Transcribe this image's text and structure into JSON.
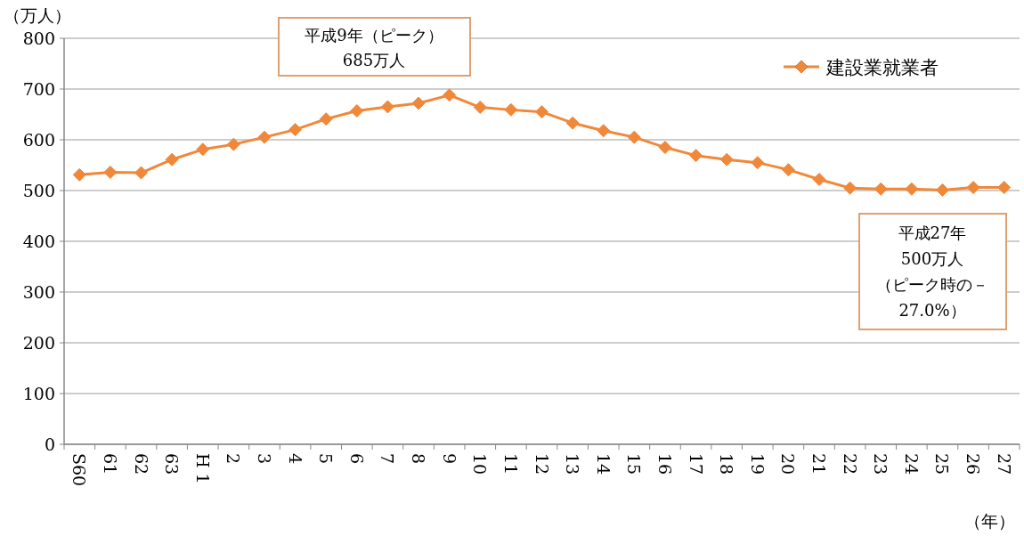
{
  "chart_data": {
    "type": "line",
    "categories": [
      "S60",
      "61",
      "62",
      "63",
      "H 1",
      "2",
      "3",
      "4",
      "5",
      "6",
      "7",
      "8",
      "9",
      "10",
      "11",
      "12",
      "13",
      "14",
      "15",
      "16",
      "17",
      "18",
      "19",
      "20",
      "21",
      "22",
      "23",
      "24",
      "25",
      "26",
      "27"
    ],
    "series": [
      {
        "name": "建設業就業者",
        "color": "#f0883a",
        "values": [
          531,
          536,
          535,
          561,
          581,
          591,
          605,
          620,
          641,
          657,
          665,
          672,
          688,
          664,
          659,
          655,
          633,
          618,
          605,
          585,
          569,
          561,
          555,
          541,
          522,
          505,
          503,
          503,
          501,
          506,
          506
        ]
      }
    ],
    "ylim": [
      0,
      800
    ],
    "yticks": [
      0,
      100,
      200,
      300,
      400,
      500,
      600,
      700,
      800
    ],
    "ylabel": "（万人）",
    "xlabel": "（年）",
    "grid": "y",
    "legend": "top right",
    "marker": "diamond",
    "annotations": [
      "平成9年（ピーク）",
      "685万人",
      "平成27年",
      "500万人",
      "（ピーク時の－",
      "27.0%）"
    ]
  }
}
